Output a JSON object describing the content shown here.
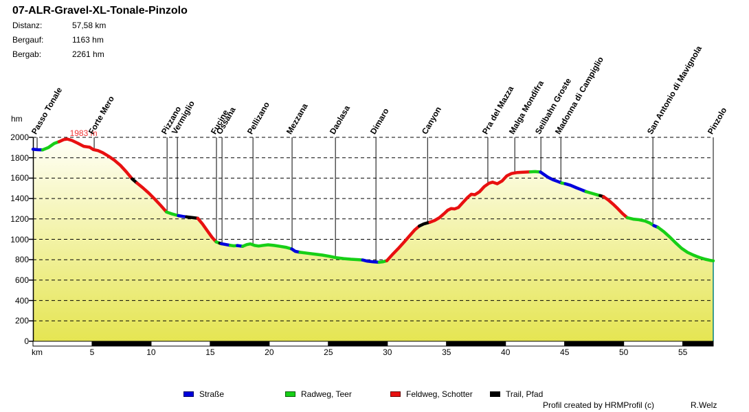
{
  "title": "07-ALR-Gravel-XL-Tonale-Pinzolo",
  "stats": {
    "rows": [
      {
        "label": "Distanz:",
        "value": "57,58 km"
      },
      {
        "label": "Bergauf:",
        "value": "1163 hm"
      },
      {
        "label": "Bergab:",
        "value": "2261 hm"
      }
    ]
  },
  "footer": {
    "credit": "Profil created by HRMProfil (c)",
    "author": "R.Welz"
  },
  "legend": [
    {
      "label": "Straße",
      "color": "#0000dd"
    },
    {
      "label": "Radweg, Teer",
      "color": "#17cf17"
    },
    {
      "label": "Feldweg, Schotter",
      "color": "#e81010"
    },
    {
      "label": "Trail, Pfad",
      "color": "#000000"
    }
  ],
  "chart_data": {
    "type": "line",
    "title": "07-ALR-Gravel-XL-Tonale-Pinzolo",
    "xlabel": "km",
    "ylabel": "hm",
    "xlim": [
      0,
      57.58
    ],
    "ylim": [
      0,
      2000
    ],
    "x_ticks": [
      5,
      10,
      15,
      20,
      25,
      30,
      35,
      40,
      45,
      50,
      55
    ],
    "y_ticks": [
      0,
      200,
      400,
      600,
      800,
      1000,
      1200,
      1400,
      1600,
      1800,
      2000
    ],
    "grid": "dashed-horizontal",
    "legend_position": "bottom",
    "peak_annotation": {
      "text": "1983 m",
      "km": 3.0,
      "hm": 1983
    },
    "colors": {
      "fill_top": "#fffff8",
      "fill_bottom": "#e5e552",
      "edge_right": "#008080",
      "annotation": "#f03434",
      "scalebar": [
        "#ffffff",
        "#000000"
      ]
    },
    "scalebar_step_km": 5,
    "waypoints": [
      {
        "name": "Passo Tonale",
        "km": 0.35,
        "hm": 1880
      },
      {
        "name": "Forte Mero",
        "km": 5.18,
        "hm": 1872
      },
      {
        "name": "Pizzano",
        "km": 11.35,
        "hm": 1266
      },
      {
        "name": "Vermiglio",
        "km": 12.22,
        "hm": 1233
      },
      {
        "name": "Fucine",
        "km": 15.53,
        "hm": 973
      },
      {
        "name": "Ossana",
        "km": 16.0,
        "hm": 955
      },
      {
        "name": "Pellizano",
        "km": 18.62,
        "hm": 944
      },
      {
        "name": "Mezzana",
        "km": 21.93,
        "hm": 906
      },
      {
        "name": "Daolasa",
        "km": 25.6,
        "hm": 821
      },
      {
        "name": "Dimaro",
        "km": 29.03,
        "hm": 777
      },
      {
        "name": "Canyon",
        "km": 33.4,
        "hm": 1160
      },
      {
        "name": "Pra del Mazza",
        "km": 38.5,
        "hm": 1542
      },
      {
        "name": "Malga Mondifra",
        "km": 40.78,
        "hm": 1652
      },
      {
        "name": "Seilbahn Groste",
        "km": 42.99,
        "hm": 1660
      },
      {
        "name": "Madonna di Campiglio",
        "km": 44.68,
        "hm": 1553
      },
      {
        "name": "San Antonio di Mavignola",
        "km": 52.47,
        "hm": 1142
      },
      {
        "name": "Pinzolo",
        "km": 57.58,
        "hm": 789
      }
    ],
    "segments": [
      {
        "surface": "Straße",
        "color": "#0000dd",
        "points": [
          [
            0,
            1883
          ],
          [
            0.4,
            1879
          ],
          [
            0.8,
            1877
          ]
        ]
      },
      {
        "surface": "Radweg, Teer",
        "color": "#17cf17",
        "points": [
          [
            0.8,
            1877
          ],
          [
            1.3,
            1900
          ],
          [
            1.8,
            1940
          ],
          [
            2.2,
            1957
          ]
        ]
      },
      {
        "surface": "Feldweg, Schotter",
        "color": "#e81010",
        "points": [
          [
            2.2,
            1957
          ],
          [
            2.6,
            1978
          ],
          [
            2.9,
            1983
          ],
          [
            3.3,
            1970
          ],
          [
            3.8,
            1942
          ],
          [
            4.3,
            1912
          ],
          [
            4.8,
            1903
          ],
          [
            5.1,
            1880
          ],
          [
            5.5,
            1870
          ],
          [
            5.9,
            1850
          ],
          [
            6.4,
            1815
          ],
          [
            6.9,
            1775
          ],
          [
            7.4,
            1725
          ],
          [
            7.9,
            1662
          ],
          [
            8.4,
            1592
          ]
        ]
      },
      {
        "surface": "Trail, Pfad",
        "color": "#000000",
        "points": [
          [
            8.4,
            1592
          ],
          [
            8.8,
            1552
          ]
        ]
      },
      {
        "surface": "Feldweg, Schotter",
        "color": "#e81010",
        "points": [
          [
            8.8,
            1552
          ],
          [
            9.3,
            1505
          ],
          [
            9.8,
            1453
          ],
          [
            10.3,
            1395
          ],
          [
            10.8,
            1333
          ],
          [
            11.3,
            1268
          ]
        ]
      },
      {
        "surface": "Radweg, Teer",
        "color": "#17cf17",
        "points": [
          [
            11.3,
            1268
          ],
          [
            11.8,
            1248
          ],
          [
            12.3,
            1232
          ]
        ]
      },
      {
        "surface": "Straße",
        "color": "#0000dd",
        "points": [
          [
            12.3,
            1232
          ],
          [
            12.7,
            1224
          ],
          [
            13.0,
            1220
          ]
        ]
      },
      {
        "surface": "Trail, Pfad",
        "color": "#000000",
        "points": [
          [
            13.0,
            1220
          ],
          [
            13.5,
            1213
          ],
          [
            13.95,
            1206
          ]
        ]
      },
      {
        "surface": "Feldweg, Schotter",
        "color": "#e81010",
        "points": [
          [
            13.95,
            1206
          ],
          [
            14.35,
            1150
          ],
          [
            14.75,
            1085
          ],
          [
            15.15,
            1020
          ],
          [
            15.5,
            975
          ]
        ]
      },
      {
        "surface": "Radweg, Teer",
        "color": "#17cf17",
        "points": [
          [
            15.5,
            975
          ],
          [
            15.8,
            962
          ]
        ]
      },
      {
        "surface": "Trail, Pfad",
        "color": "#000000",
        "points": [
          [
            15.8,
            962
          ],
          [
            15.95,
            957
          ]
        ]
      },
      {
        "surface": "Straße",
        "color": "#0000dd",
        "points": [
          [
            15.95,
            957
          ],
          [
            16.35,
            948
          ],
          [
            16.7,
            941
          ]
        ]
      },
      {
        "surface": "Radweg, Teer",
        "color": "#17cf17",
        "points": [
          [
            16.7,
            941
          ],
          [
            17.0,
            936
          ],
          [
            17.3,
            939
          ]
        ]
      },
      {
        "surface": "Straße",
        "color": "#0000dd",
        "points": [
          [
            17.3,
            939
          ],
          [
            17.75,
            931
          ]
        ]
      },
      {
        "surface": "Radweg, Teer",
        "color": "#17cf17",
        "points": [
          [
            17.75,
            931
          ],
          [
            18.1,
            948
          ],
          [
            18.4,
            955
          ],
          [
            18.75,
            940
          ],
          [
            19.1,
            934
          ],
          [
            19.5,
            941
          ],
          [
            19.9,
            946
          ],
          [
            20.4,
            940
          ],
          [
            20.9,
            931
          ],
          [
            21.4,
            922
          ],
          [
            21.9,
            906
          ]
        ]
      },
      {
        "surface": "Straße",
        "color": "#0000dd",
        "points": [
          [
            21.9,
            906
          ],
          [
            22.2,
            882
          ],
          [
            22.6,
            873
          ]
        ]
      },
      {
        "surface": "Radweg, Teer",
        "color": "#17cf17",
        "points": [
          [
            22.6,
            873
          ],
          [
            23.2,
            864
          ],
          [
            23.8,
            855
          ],
          [
            24.5,
            845
          ],
          [
            25.1,
            833
          ],
          [
            25.7,
            819
          ],
          [
            26.3,
            811
          ],
          [
            26.9,
            805
          ],
          [
            27.5,
            801
          ],
          [
            27.9,
            797
          ]
        ]
      },
      {
        "surface": "Straße",
        "color": "#0000dd",
        "points": [
          [
            27.9,
            797
          ],
          [
            28.3,
            786
          ],
          [
            28.8,
            779
          ],
          [
            29.3,
            775
          ]
        ]
      },
      {
        "surface": "Radweg, Teer",
        "color": "#17cf17",
        "points": [
          [
            29.3,
            775
          ],
          [
            29.6,
            779
          ],
          [
            29.95,
            790
          ]
        ]
      },
      {
        "surface": "Feldweg, Schotter",
        "color": "#e81010",
        "points": [
          [
            29.95,
            790
          ],
          [
            30.4,
            848
          ],
          [
            30.9,
            908
          ],
          [
            31.4,
            972
          ],
          [
            31.9,
            1038
          ],
          [
            32.3,
            1090
          ],
          [
            32.7,
            1130
          ]
        ]
      },
      {
        "surface": "Trail, Pfad",
        "color": "#000000",
        "points": [
          [
            32.7,
            1130
          ],
          [
            33.1,
            1152
          ],
          [
            33.6,
            1168
          ]
        ]
      },
      {
        "surface": "Feldweg, Schotter",
        "color": "#e81010",
        "points": [
          [
            33.6,
            1168
          ],
          [
            34.0,
            1185
          ],
          [
            34.4,
            1212
          ],
          [
            34.8,
            1252
          ],
          [
            35.1,
            1285
          ],
          [
            35.4,
            1302
          ],
          [
            35.7,
            1298
          ],
          [
            36.0,
            1312
          ],
          [
            36.4,
            1362
          ],
          [
            36.8,
            1412
          ],
          [
            37.1,
            1442
          ],
          [
            37.4,
            1437
          ],
          [
            37.8,
            1467
          ],
          [
            38.2,
            1517
          ],
          [
            38.6,
            1550
          ],
          [
            38.9,
            1560
          ],
          [
            39.3,
            1545
          ],
          [
            39.7,
            1572
          ],
          [
            40.1,
            1622
          ],
          [
            40.5,
            1645
          ],
          [
            41.0,
            1655
          ],
          [
            41.5,
            1658
          ],
          [
            42.1,
            1661
          ]
        ]
      },
      {
        "surface": "Radweg, Teer",
        "color": "#17cf17",
        "points": [
          [
            42.1,
            1661
          ],
          [
            42.5,
            1664
          ],
          [
            42.95,
            1660
          ]
        ]
      },
      {
        "surface": "Straße",
        "color": "#0000dd",
        "points": [
          [
            42.95,
            1660
          ],
          [
            43.2,
            1640
          ],
          [
            43.6,
            1608
          ],
          [
            44.0,
            1585
          ],
          [
            44.4,
            1568
          ],
          [
            44.75,
            1552
          ]
        ]
      },
      {
        "surface": "Radweg, Teer",
        "color": "#17cf17",
        "points": [
          [
            44.75,
            1552
          ],
          [
            45.05,
            1545
          ]
        ]
      },
      {
        "surface": "Straße",
        "color": "#0000dd",
        "points": [
          [
            45.05,
            1545
          ],
          [
            45.5,
            1530
          ],
          [
            46.0,
            1505
          ],
          [
            46.4,
            1487
          ],
          [
            46.8,
            1468
          ]
        ]
      },
      {
        "surface": "Radweg, Teer",
        "color": "#17cf17",
        "points": [
          [
            46.8,
            1468
          ],
          [
            47.4,
            1448
          ],
          [
            48.0,
            1428
          ]
        ]
      },
      {
        "surface": "Trail, Pfad",
        "color": "#000000",
        "points": [
          [
            48.0,
            1428
          ],
          [
            48.3,
            1418
          ]
        ]
      },
      {
        "surface": "Feldweg, Schotter",
        "color": "#e81010",
        "points": [
          [
            48.3,
            1418
          ],
          [
            48.7,
            1385
          ],
          [
            49.1,
            1345
          ],
          [
            49.5,
            1300
          ],
          [
            49.9,
            1252
          ],
          [
            50.3,
            1212
          ]
        ]
      },
      {
        "surface": "Radweg, Teer",
        "color": "#17cf17",
        "points": [
          [
            50.3,
            1212
          ],
          [
            50.8,
            1198
          ],
          [
            51.3,
            1192
          ],
          [
            51.8,
            1180
          ],
          [
            52.2,
            1160
          ],
          [
            52.55,
            1135
          ]
        ]
      },
      {
        "surface": "Straße",
        "color": "#0000dd",
        "points": [
          [
            52.55,
            1135
          ],
          [
            52.9,
            1118
          ]
        ]
      },
      {
        "surface": "Radweg, Teer",
        "color": "#17cf17",
        "points": [
          [
            52.9,
            1118
          ],
          [
            53.4,
            1075
          ],
          [
            53.9,
            1022
          ],
          [
            54.4,
            965
          ],
          [
            54.9,
            912
          ],
          [
            55.4,
            872
          ],
          [
            55.9,
            845
          ],
          [
            56.4,
            822
          ],
          [
            56.9,
            805
          ],
          [
            57.3,
            794
          ],
          [
            57.58,
            789
          ]
        ]
      }
    ]
  }
}
